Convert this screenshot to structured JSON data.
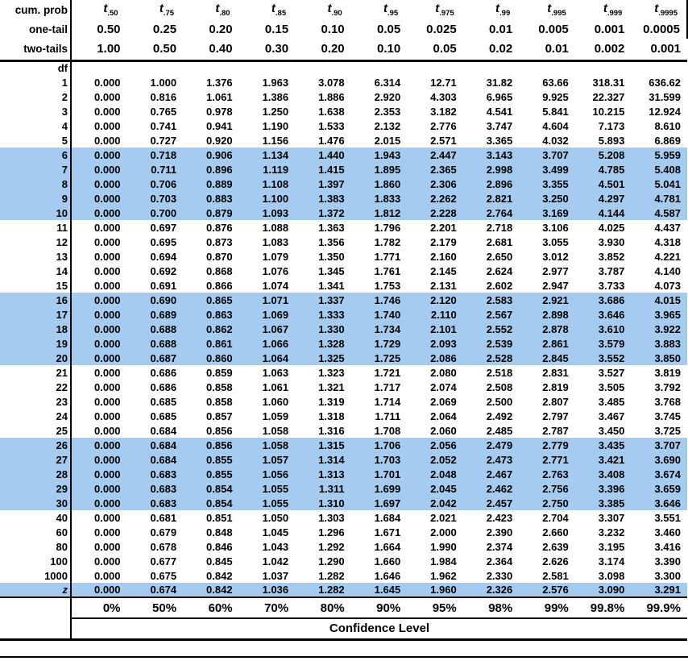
{
  "header": {
    "cum_prob_label": "cum. prob",
    "t_symbol": "t",
    "t_subscripts": [
      ".50",
      ".75",
      ".80",
      ".85",
      ".90",
      ".95",
      ".975",
      ".99",
      ".995",
      ".999",
      ".9995"
    ],
    "one_tail_label": "one-tail",
    "one_tail_values": [
      "0.50",
      "0.25",
      "0.20",
      "0.15",
      "0.10",
      "0.05",
      "0.025",
      "0.01",
      "0.005",
      "0.001",
      "0.0005"
    ],
    "two_tails_label": "two-tails",
    "two_tails_values": [
      "1.00",
      "0.50",
      "0.40",
      "0.30",
      "0.20",
      "0.10",
      "0.05",
      "0.02",
      "0.01",
      "0.002",
      "0.001"
    ],
    "df_label": "df"
  },
  "rows": [
    {
      "df": "1",
      "highlight": false,
      "italic": false,
      "values": [
        "0.000",
        "1.000",
        "1.376",
        "1.963",
        "3.078",
        "6.314",
        "12.71",
        "31.82",
        "63.66",
        "318.31",
        "636.62"
      ]
    },
    {
      "df": "2",
      "highlight": false,
      "italic": false,
      "values": [
        "0.000",
        "0.816",
        "1.061",
        "1.386",
        "1.886",
        "2.920",
        "4.303",
        "6.965",
        "9.925",
        "22.327",
        "31.599"
      ]
    },
    {
      "df": "3",
      "highlight": false,
      "italic": false,
      "values": [
        "0.000",
        "0.765",
        "0.978",
        "1.250",
        "1.638",
        "2.353",
        "3.182",
        "4.541",
        "5.841",
        "10.215",
        "12.924"
      ]
    },
    {
      "df": "4",
      "highlight": false,
      "italic": false,
      "values": [
        "0.000",
        "0.741",
        "0.941",
        "1.190",
        "1.533",
        "2.132",
        "2.776",
        "3.747",
        "4.604",
        "7.173",
        "8.610"
      ]
    },
    {
      "df": "5",
      "highlight": false,
      "italic": false,
      "values": [
        "0.000",
        "0.727",
        "0.920",
        "1.156",
        "1.476",
        "2.015",
        "2.571",
        "3.365",
        "4.032",
        "5.893",
        "6.869"
      ]
    },
    {
      "df": "6",
      "highlight": true,
      "italic": false,
      "values": [
        "0.000",
        "0.718",
        "0.906",
        "1.134",
        "1.440",
        "1.943",
        "2.447",
        "3.143",
        "3.707",
        "5.208",
        "5.959"
      ]
    },
    {
      "df": "7",
      "highlight": true,
      "italic": false,
      "values": [
        "0.000",
        "0.711",
        "0.896",
        "1.119",
        "1.415",
        "1.895",
        "2.365",
        "2.998",
        "3.499",
        "4.785",
        "5.408"
      ]
    },
    {
      "df": "8",
      "highlight": true,
      "italic": false,
      "values": [
        "0.000",
        "0.706",
        "0.889",
        "1.108",
        "1.397",
        "1.860",
        "2.306",
        "2.896",
        "3.355",
        "4.501",
        "5.041"
      ]
    },
    {
      "df": "9",
      "highlight": true,
      "italic": false,
      "values": [
        "0.000",
        "0.703",
        "0.883",
        "1.100",
        "1.383",
        "1.833",
        "2.262",
        "2.821",
        "3.250",
        "4.297",
        "4.781"
      ]
    },
    {
      "df": "10",
      "highlight": true,
      "italic": false,
      "values": [
        "0.000",
        "0.700",
        "0.879",
        "1.093",
        "1.372",
        "1.812",
        "2.228",
        "2.764",
        "3.169",
        "4.144",
        "4.587"
      ]
    },
    {
      "df": "11",
      "highlight": false,
      "italic": false,
      "values": [
        "0.000",
        "0.697",
        "0.876",
        "1.088",
        "1.363",
        "1.796",
        "2.201",
        "2.718",
        "3.106",
        "4.025",
        "4.437"
      ]
    },
    {
      "df": "12",
      "highlight": false,
      "italic": false,
      "values": [
        "0.000",
        "0.695",
        "0.873",
        "1.083",
        "1.356",
        "1.782",
        "2.179",
        "2.681",
        "3.055",
        "3.930",
        "4.318"
      ]
    },
    {
      "df": "13",
      "highlight": false,
      "italic": false,
      "values": [
        "0.000",
        "0.694",
        "0.870",
        "1.079",
        "1.350",
        "1.771",
        "2.160",
        "2.650",
        "3.012",
        "3.852",
        "4.221"
      ]
    },
    {
      "df": "14",
      "highlight": false,
      "italic": false,
      "values": [
        "0.000",
        "0.692",
        "0.868",
        "1.076",
        "1.345",
        "1.761",
        "2.145",
        "2.624",
        "2.977",
        "3.787",
        "4.140"
      ]
    },
    {
      "df": "15",
      "highlight": false,
      "italic": false,
      "values": [
        "0.000",
        "0.691",
        "0.866",
        "1.074",
        "1.341",
        "1.753",
        "2.131",
        "2.602",
        "2.947",
        "3.733",
        "4.073"
      ]
    },
    {
      "df": "16",
      "highlight": true,
      "italic": false,
      "values": [
        "0.000",
        "0.690",
        "0.865",
        "1.071",
        "1.337",
        "1.746",
        "2.120",
        "2.583",
        "2.921",
        "3.686",
        "4.015"
      ]
    },
    {
      "df": "17",
      "highlight": true,
      "italic": false,
      "values": [
        "0.000",
        "0.689",
        "0.863",
        "1.069",
        "1.333",
        "1.740",
        "2.110",
        "2.567",
        "2.898",
        "3.646",
        "3.965"
      ]
    },
    {
      "df": "18",
      "highlight": true,
      "italic": false,
      "values": [
        "0.000",
        "0.688",
        "0.862",
        "1.067",
        "1.330",
        "1.734",
        "2.101",
        "2.552",
        "2.878",
        "3.610",
        "3.922"
      ]
    },
    {
      "df": "19",
      "highlight": true,
      "italic": false,
      "values": [
        "0.000",
        "0.688",
        "0.861",
        "1.066",
        "1.328",
        "1.729",
        "2.093",
        "2.539",
        "2.861",
        "3.579",
        "3.883"
      ]
    },
    {
      "df": "20",
      "highlight": true,
      "italic": false,
      "values": [
        "0.000",
        "0.687",
        "0.860",
        "1.064",
        "1.325",
        "1.725",
        "2.086",
        "2.528",
        "2.845",
        "3.552",
        "3.850"
      ]
    },
    {
      "df": "21",
      "highlight": false,
      "italic": false,
      "values": [
        "0.000",
        "0.686",
        "0.859",
        "1.063",
        "1.323",
        "1.721",
        "2.080",
        "2.518",
        "2.831",
        "3.527",
        "3.819"
      ]
    },
    {
      "df": "22",
      "highlight": false,
      "italic": false,
      "values": [
        "0.000",
        "0.686",
        "0.858",
        "1.061",
        "1.321",
        "1.717",
        "2.074",
        "2.508",
        "2.819",
        "3.505",
        "3.792"
      ]
    },
    {
      "df": "23",
      "highlight": false,
      "italic": false,
      "values": [
        "0.000",
        "0.685",
        "0.858",
        "1.060",
        "1.319",
        "1.714",
        "2.069",
        "2.500",
        "2.807",
        "3.485",
        "3.768"
      ]
    },
    {
      "df": "24",
      "highlight": false,
      "italic": false,
      "values": [
        "0.000",
        "0.685",
        "0.857",
        "1.059",
        "1.318",
        "1.711",
        "2.064",
        "2.492",
        "2.797",
        "3.467",
        "3.745"
      ]
    },
    {
      "df": "25",
      "highlight": false,
      "italic": false,
      "values": [
        "0.000",
        "0.684",
        "0.856",
        "1.058",
        "1.316",
        "1.708",
        "2.060",
        "2.485",
        "2.787",
        "3.450",
        "3.725"
      ]
    },
    {
      "df": "26",
      "highlight": true,
      "italic": false,
      "values": [
        "0.000",
        "0.684",
        "0.856",
        "1.058",
        "1.315",
        "1.706",
        "2.056",
        "2.479",
        "2.779",
        "3.435",
        "3.707"
      ]
    },
    {
      "df": "27",
      "highlight": true,
      "italic": false,
      "values": [
        "0.000",
        "0.684",
        "0.855",
        "1.057",
        "1.314",
        "1.703",
        "2.052",
        "2.473",
        "2.771",
        "3.421",
        "3.690"
      ]
    },
    {
      "df": "28",
      "highlight": true,
      "italic": false,
      "values": [
        "0.000",
        "0.683",
        "0.855",
        "1.056",
        "1.313",
        "1.701",
        "2.048",
        "2.467",
        "2.763",
        "3.408",
        "3.674"
      ]
    },
    {
      "df": "29",
      "highlight": true,
      "italic": false,
      "values": [
        "0.000",
        "0.683",
        "0.854",
        "1.055",
        "1.311",
        "1.699",
        "2.045",
        "2.462",
        "2.756",
        "3.396",
        "3.659"
      ]
    },
    {
      "df": "30",
      "highlight": true,
      "italic": false,
      "values": [
        "0.000",
        "0.683",
        "0.854",
        "1.055",
        "1.310",
        "1.697",
        "2.042",
        "2.457",
        "2.750",
        "3.385",
        "3.646"
      ]
    },
    {
      "df": "40",
      "highlight": false,
      "italic": false,
      "values": [
        "0.000",
        "0.681",
        "0.851",
        "1.050",
        "1.303",
        "1.684",
        "2.021",
        "2.423",
        "2.704",
        "3.307",
        "3.551"
      ]
    },
    {
      "df": "60",
      "highlight": false,
      "italic": false,
      "values": [
        "0.000",
        "0.679",
        "0.848",
        "1.045",
        "1.296",
        "1.671",
        "2.000",
        "2.390",
        "2.660",
        "3.232",
        "3.460"
      ]
    },
    {
      "df": "80",
      "highlight": false,
      "italic": false,
      "values": [
        "0.000",
        "0.678",
        "0.846",
        "1.043",
        "1.292",
        "1.664",
        "1.990",
        "2.374",
        "2.639",
        "3.195",
        "3.416"
      ]
    },
    {
      "df": "100",
      "highlight": false,
      "italic": false,
      "values": [
        "0.000",
        "0.677",
        "0.845",
        "1.042",
        "1.290",
        "1.660",
        "1.984",
        "2.364",
        "2.626",
        "3.174",
        "3.390"
      ]
    },
    {
      "df": "1000",
      "highlight": false,
      "italic": false,
      "values": [
        "0.000",
        "0.675",
        "0.842",
        "1.037",
        "1.282",
        "1.646",
        "1.962",
        "2.330",
        "2.581",
        "3.098",
        "3.300"
      ]
    },
    {
      "df": "z",
      "highlight": true,
      "italic": true,
      "values": [
        "0.000",
        "0.674",
        "0.842",
        "1.036",
        "1.282",
        "1.645",
        "1.960",
        "2.326",
        "2.576",
        "3.090",
        "3.291"
      ]
    }
  ],
  "footer": {
    "confidence_values": [
      "0%",
      "50%",
      "60%",
      "70%",
      "80%",
      "90%",
      "95%",
      "98%",
      "99%",
      "99.8%",
      "99.9%"
    ],
    "confidence_label": "Confidence Level"
  },
  "colors": {
    "highlight_blue": "#a6cbf0",
    "text": "#000000",
    "background": "#ffffff"
  }
}
